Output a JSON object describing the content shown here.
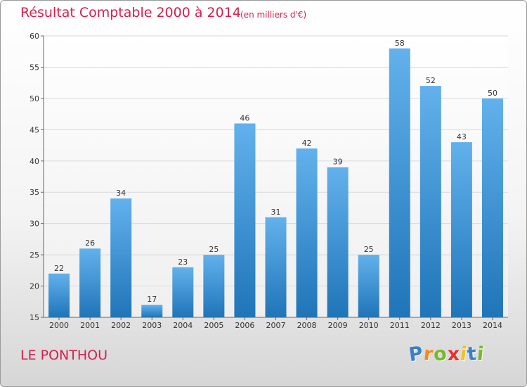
{
  "header": {
    "title": "Résultat Comptable 2000 à 2014",
    "subtitle": "(en milliers d'€)"
  },
  "footer": {
    "commune": "LE PONTHOU",
    "logo_letters": [
      "P",
      "r",
      "o",
      "x",
      "i",
      "t",
      "i"
    ],
    "logo_colors": [
      "#3a7fc8",
      "#f08c1e",
      "#79b72c",
      "#e8312b",
      "#f2c221",
      "#3a7fc8",
      "#79b72c"
    ]
  },
  "colors": {
    "title": "#d4204e",
    "bar_light": "#62b1ec",
    "bar_dark": "#1f75b8",
    "grid": "#d9d9d9",
    "axis": "#666666"
  },
  "chart_data": {
    "type": "bar",
    "title": "Résultat Comptable 2000 à 2014",
    "subtitle": "(en milliers d'€)",
    "xlabel": "",
    "ylabel": "",
    "categories": [
      "2000",
      "2001",
      "2002",
      "2003",
      "2004",
      "2005",
      "2006",
      "2007",
      "2008",
      "2009",
      "2010",
      "2011",
      "2012",
      "2013",
      "2014"
    ],
    "values": [
      22,
      26,
      34,
      17,
      23,
      25,
      46,
      31,
      42,
      39,
      25,
      58,
      52,
      43,
      50
    ],
    "ylim": [
      15,
      60
    ],
    "yticks": [
      15,
      20,
      25,
      30,
      35,
      40,
      45,
      50,
      55,
      60
    ],
    "grid": true,
    "legend": "none"
  }
}
